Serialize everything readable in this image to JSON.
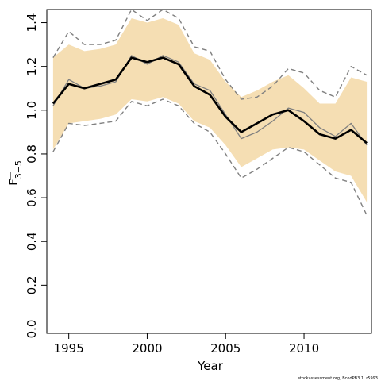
{
  "chart_data": {
    "type": "line",
    "xlabel": "Year",
    "ylabel": {
      "main": "F",
      "sub": "3−5"
    },
    "xlim": [
      1993.6,
      2014.3
    ],
    "ylim": [
      -0.02,
      1.46
    ],
    "x_ticks": [
      1995,
      2000,
      2005,
      2010
    ],
    "y_ticks": [
      0.0,
      0.2,
      0.4,
      0.6,
      0.8,
      1.0,
      1.2,
      1.4
    ],
    "y_tick_labels": [
      "0.0",
      "0.2",
      "0.4",
      "0.6",
      "0.8",
      "1.0",
      "1.2",
      "1.4"
    ],
    "grid": false,
    "legend": "none",
    "colors": {
      "band": "#F5DEB3",
      "estimate": "#000000",
      "alternative": "#808080",
      "bounds": "#808080"
    },
    "x": [
      1994,
      1995,
      1996,
      1997,
      1998,
      1999,
      2000,
      2001,
      2002,
      2003,
      2004,
      2005,
      2006,
      2007,
      2008,
      2009,
      2010,
      2011,
      2012,
      2013,
      2014
    ],
    "band_upper": [
      1.24,
      1.3,
      1.27,
      1.28,
      1.3,
      1.42,
      1.4,
      1.42,
      1.39,
      1.26,
      1.23,
      1.13,
      1.06,
      1.09,
      1.13,
      1.16,
      1.1,
      1.03,
      1.03,
      1.15,
      1.13
    ],
    "band_lower": [
      0.82,
      0.94,
      0.95,
      0.96,
      0.98,
      1.05,
      1.04,
      1.06,
      1.03,
      0.95,
      0.92,
      0.84,
      0.74,
      0.78,
      0.82,
      0.83,
      0.82,
      0.77,
      0.72,
      0.7,
      0.58
    ],
    "series": [
      {
        "role": "estimate",
        "values": [
          1.03,
          1.12,
          1.1,
          1.12,
          1.14,
          1.24,
          1.22,
          1.24,
          1.21,
          1.11,
          1.07,
          0.97,
          0.9,
          0.94,
          0.98,
          1.0,
          0.95,
          0.89,
          0.87,
          0.91,
          0.85
        ]
      },
      {
        "role": "alternative",
        "values": [
          1.02,
          1.14,
          1.1,
          1.11,
          1.13,
          1.25,
          1.21,
          1.25,
          1.22,
          1.12,
          1.09,
          0.98,
          0.87,
          0.9,
          0.95,
          1.01,
          0.99,
          0.92,
          0.88,
          0.94,
          0.84
        ]
      },
      {
        "role": "upper-bound",
        "values": [
          1.24,
          1.36,
          1.3,
          1.3,
          1.32,
          1.46,
          1.41,
          1.46,
          1.42,
          1.29,
          1.27,
          1.14,
          1.05,
          1.06,
          1.11,
          1.19,
          1.17,
          1.09,
          1.06,
          1.2,
          1.16
        ]
      },
      {
        "role": "lower-bound",
        "values": [
          0.81,
          0.94,
          0.93,
          0.94,
          0.95,
          1.04,
          1.02,
          1.05,
          1.02,
          0.94,
          0.9,
          0.8,
          0.69,
          0.73,
          0.78,
          0.83,
          0.81,
          0.75,
          0.69,
          0.67,
          0.52
        ]
      }
    ]
  },
  "credit": "stockassessment.org, BcodPB3.1, r5993"
}
